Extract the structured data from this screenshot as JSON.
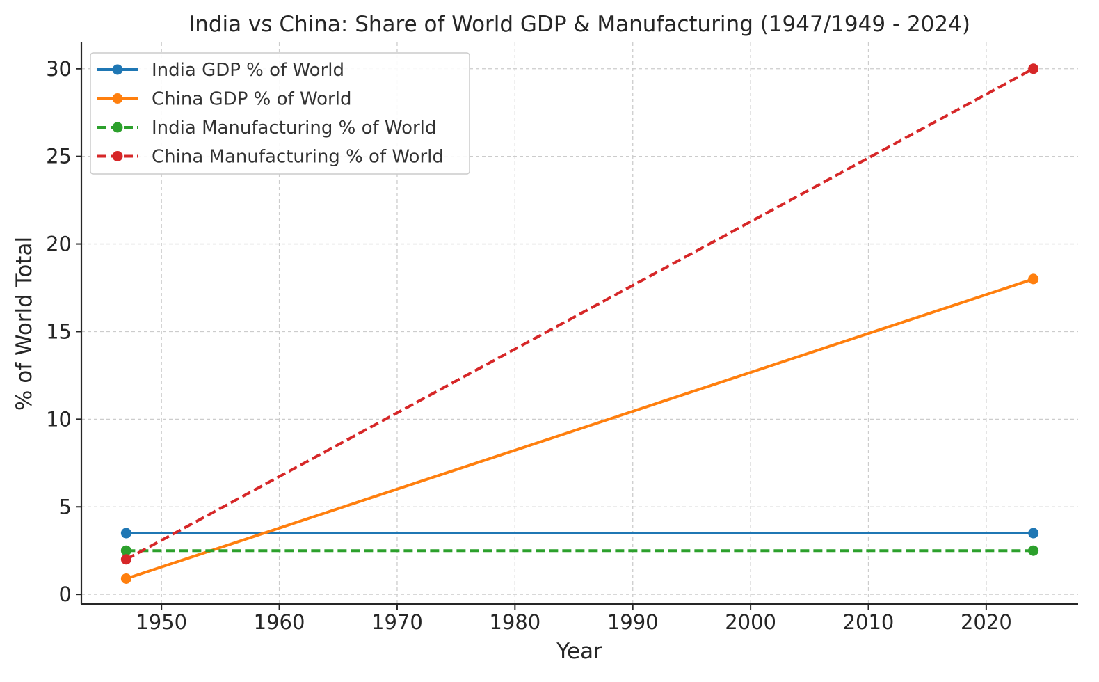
{
  "chart_data": {
    "type": "line",
    "title": "India vs China: Share of World GDP & Manufacturing (1947/1949 - 2024)",
    "xlabel": "Year",
    "ylabel": "% of World Total",
    "xlim": [
      1943.2,
      2027.8
    ],
    "ylim": [
      -0.55,
      31.5
    ],
    "xticks": [
      1950,
      1960,
      1970,
      1980,
      1990,
      2000,
      2010,
      2020
    ],
    "yticks": [
      0,
      5,
      10,
      15,
      20,
      25,
      30
    ],
    "grid": true,
    "legend_position": "top-left",
    "series": [
      {
        "name": "India GDP % of World",
        "x": [
          1947,
          2024
        ],
        "y": [
          3.5,
          3.5
        ],
        "color": "#1f77b4",
        "style": "solid"
      },
      {
        "name": "China GDP % of World",
        "x": [
          1947,
          2024
        ],
        "y": [
          0.9,
          18
        ],
        "color": "#ff7f0e",
        "style": "solid"
      },
      {
        "name": "India Manufacturing % of World",
        "x": [
          1947,
          2024
        ],
        "y": [
          2.5,
          2.5
        ],
        "color": "#2ca02c",
        "style": "dashed"
      },
      {
        "name": "China Manufacturing % of World",
        "x": [
          1947,
          2024
        ],
        "y": [
          2.0,
          30
        ],
        "color": "#d62728",
        "style": "dashed"
      }
    ]
  }
}
